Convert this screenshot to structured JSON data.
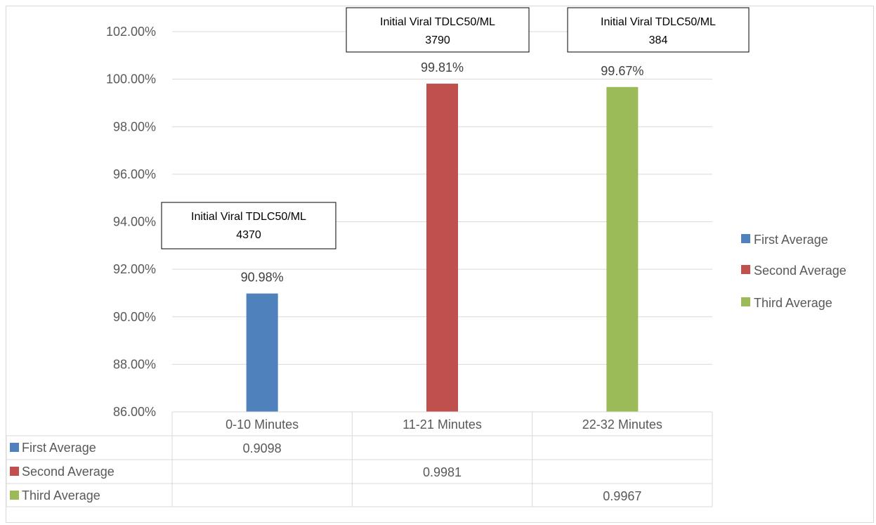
{
  "chart_data": {
    "type": "bar",
    "categories": [
      "0-10 Minutes",
      "11-21 Minutes",
      "22-32 Minutes"
    ],
    "series": [
      {
        "name": "First Average",
        "color": "#4f81bd",
        "values": [
          0.9098,
          null,
          null
        ]
      },
      {
        "name": "Second Average",
        "color": "#c0504d",
        "values": [
          null,
          0.9981,
          null
        ]
      },
      {
        "name": "Third Average",
        "color": "#9bbb59",
        "values": [
          null,
          null,
          0.9967
        ]
      }
    ],
    "data_labels": [
      "90.98%",
      "99.81%",
      "99.67%"
    ],
    "table_values": [
      "0.9098",
      "0.9981",
      "0.9967"
    ],
    "ylim": [
      0.86,
      1.02
    ],
    "yticks": [
      "86.00%",
      "88.00%",
      "90.00%",
      "92.00%",
      "94.00%",
      "96.00%",
      "98.00%",
      "100.00%",
      "102.00%"
    ],
    "annotations": [
      {
        "line1": "Initial Viral TDLC50/ML",
        "line2": "4370"
      },
      {
        "line1": "Initial Viral TDLC50/ML",
        "line2": "3790"
      },
      {
        "line1": "Initial Viral TDLC50/ML",
        "line2": "384"
      }
    ],
    "grid": true,
    "legend": "right",
    "title": "",
    "xlabel": "",
    "ylabel": ""
  }
}
